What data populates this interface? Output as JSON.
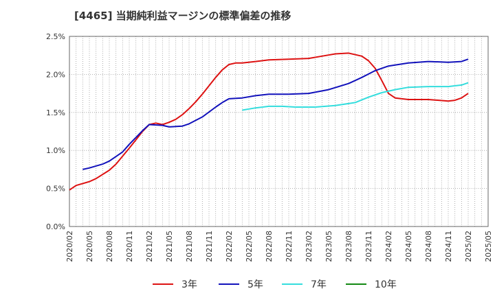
{
  "title": "[4465]  当期純利益マージンの標準偏差の推移",
  "chart_data": {
    "type": "line",
    "title": "[4465]  当期純利益マージンの標準偏差の推移",
    "xlabel": "",
    "ylabel": "",
    "ylim": [
      0,
      0.025
    ],
    "grid": true,
    "legend_position": "bottom",
    "x_ticks": [
      "2020/02",
      "2020/05",
      "2020/08",
      "2020/11",
      "2021/02",
      "2021/05",
      "2021/08",
      "2021/11",
      "2022/02",
      "2022/05",
      "2022/08",
      "2022/11",
      "2023/02",
      "2023/05",
      "2023/08",
      "2023/11",
      "2024/02",
      "2024/05",
      "2024/08",
      "2024/11",
      "2025/02",
      "2025/05"
    ],
    "y_ticks": [
      "0.0%",
      "0.5%",
      "1.0%",
      "1.5%",
      "2.0%",
      "2.5%"
    ],
    "series": [
      {
        "name": "3年",
        "color": "#dd1111",
        "points": [
          [
            "2020/02",
            0.0048
          ],
          [
            "2020/03",
            0.0054
          ],
          [
            "2020/05",
            0.0059
          ],
          [
            "2020/06",
            0.0063
          ],
          [
            "2020/08",
            0.0074
          ],
          [
            "2020/09",
            0.0082
          ],
          [
            "2020/11",
            0.0103
          ],
          [
            "2020/12",
            0.0114
          ],
          [
            "2021/01",
            0.0125
          ],
          [
            "2021/02",
            0.0134
          ],
          [
            "2021/03",
            0.0136
          ],
          [
            "2021/04",
            0.0134
          ],
          [
            "2021/05",
            0.0137
          ],
          [
            "2021/06",
            0.0141
          ],
          [
            "2021/07",
            0.0147
          ],
          [
            "2021/08",
            0.0155
          ],
          [
            "2021/09",
            0.0164
          ],
          [
            "2021/10",
            0.0174
          ],
          [
            "2021/11",
            0.0185
          ],
          [
            "2021/12",
            0.0196
          ],
          [
            "2022/01",
            0.0206
          ],
          [
            "2022/02",
            0.0213
          ],
          [
            "2022/03",
            0.0215
          ],
          [
            "2022/04",
            0.0215
          ],
          [
            "2022/06",
            0.0217
          ],
          [
            "2022/08",
            0.0219
          ],
          [
            "2022/11",
            0.022
          ],
          [
            "2023/02",
            0.0221
          ],
          [
            "2023/04",
            0.0224
          ],
          [
            "2023/06",
            0.0227
          ],
          [
            "2023/08",
            0.0228
          ],
          [
            "2023/10",
            0.0224
          ],
          [
            "2023/11",
            0.0218
          ],
          [
            "2023/12",
            0.0208
          ],
          [
            "2024/01",
            0.0192
          ],
          [
            "2024/02",
            0.0175
          ],
          [
            "2024/03",
            0.0169
          ],
          [
            "2024/05",
            0.0167
          ],
          [
            "2024/08",
            0.0167
          ],
          [
            "2024/11",
            0.0165
          ],
          [
            "2024/12",
            0.0166
          ],
          [
            "2025/01",
            0.0169
          ],
          [
            "2025/02",
            0.0175
          ]
        ]
      },
      {
        "name": "5年",
        "color": "#1111bb",
        "points": [
          [
            "2020/04",
            0.0075
          ],
          [
            "2020/05",
            0.0077
          ],
          [
            "2020/07",
            0.0082
          ],
          [
            "2020/08",
            0.0086
          ],
          [
            "2020/10",
            0.0098
          ],
          [
            "2020/11",
            0.0108
          ],
          [
            "2021/01",
            0.0126
          ],
          [
            "2021/02",
            0.0134
          ],
          [
            "2021/04",
            0.0133
          ],
          [
            "2021/05",
            0.0131
          ],
          [
            "2021/07",
            0.0132
          ],
          [
            "2021/08",
            0.0135
          ],
          [
            "2021/10",
            0.0144
          ],
          [
            "2021/12",
            0.0157
          ],
          [
            "2022/01",
            0.0163
          ],
          [
            "2022/02",
            0.0168
          ],
          [
            "2022/04",
            0.0169
          ],
          [
            "2022/06",
            0.0172
          ],
          [
            "2022/08",
            0.0174
          ],
          [
            "2022/11",
            0.0174
          ],
          [
            "2023/02",
            0.0175
          ],
          [
            "2023/05",
            0.018
          ],
          [
            "2023/08",
            0.0188
          ],
          [
            "2023/10",
            0.0196
          ],
          [
            "2023/12",
            0.0205
          ],
          [
            "2024/02",
            0.0211
          ],
          [
            "2024/05",
            0.0215
          ],
          [
            "2024/08",
            0.0217
          ],
          [
            "2024/11",
            0.0216
          ],
          [
            "2025/01",
            0.0217
          ],
          [
            "2025/02",
            0.022
          ]
        ]
      },
      {
        "name": "7年",
        "color": "#33dddd",
        "points": [
          [
            "2022/04",
            0.0153
          ],
          [
            "2022/06",
            0.0156
          ],
          [
            "2022/08",
            0.0158
          ],
          [
            "2022/10",
            0.0158
          ],
          [
            "2022/12",
            0.0157
          ],
          [
            "2023/03",
            0.0157
          ],
          [
            "2023/06",
            0.0159
          ],
          [
            "2023/09",
            0.0163
          ],
          [
            "2023/11",
            0.017
          ],
          [
            "2024/01",
            0.0176
          ],
          [
            "2024/03",
            0.018
          ],
          [
            "2024/05",
            0.0183
          ],
          [
            "2024/08",
            0.0184
          ],
          [
            "2024/11",
            0.0184
          ],
          [
            "2025/01",
            0.0186
          ],
          [
            "2025/02",
            0.0189
          ]
        ]
      },
      {
        "name": "10年",
        "color": "#118811",
        "points": []
      }
    ]
  }
}
